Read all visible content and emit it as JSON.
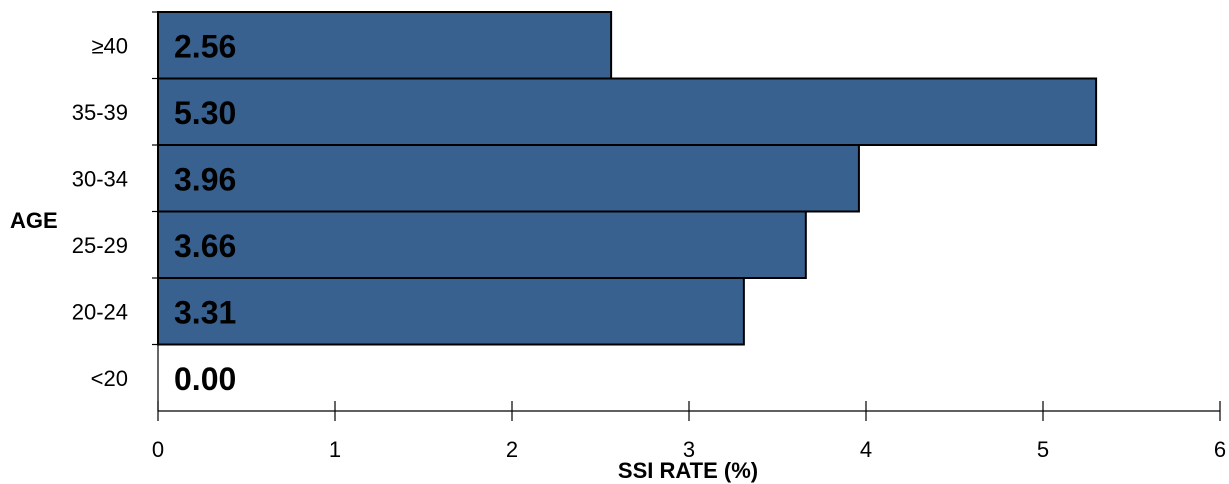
{
  "chart_data": {
    "type": "bar",
    "orientation": "horizontal",
    "categories": [
      "<20",
      "20-24",
      "25-29",
      "30-34",
      "35-39",
      "≥40"
    ],
    "values": [
      0.0,
      3.31,
      3.66,
      3.96,
      5.3,
      2.56
    ],
    "data_labels": [
      "0.00",
      "3.31",
      "3.66",
      "3.96",
      "5.30",
      "2.56"
    ],
    "xlabel": "SSI RATE (%)",
    "ylabel": "AGE",
    "xlim": [
      0,
      6
    ],
    "xticks": [
      0,
      1,
      2,
      3,
      4,
      5,
      6
    ],
    "grid": false,
    "legend": "none",
    "colors": {
      "bar": "#38618F",
      "bar_border": "#000000",
      "axis": "#000000"
    }
  }
}
